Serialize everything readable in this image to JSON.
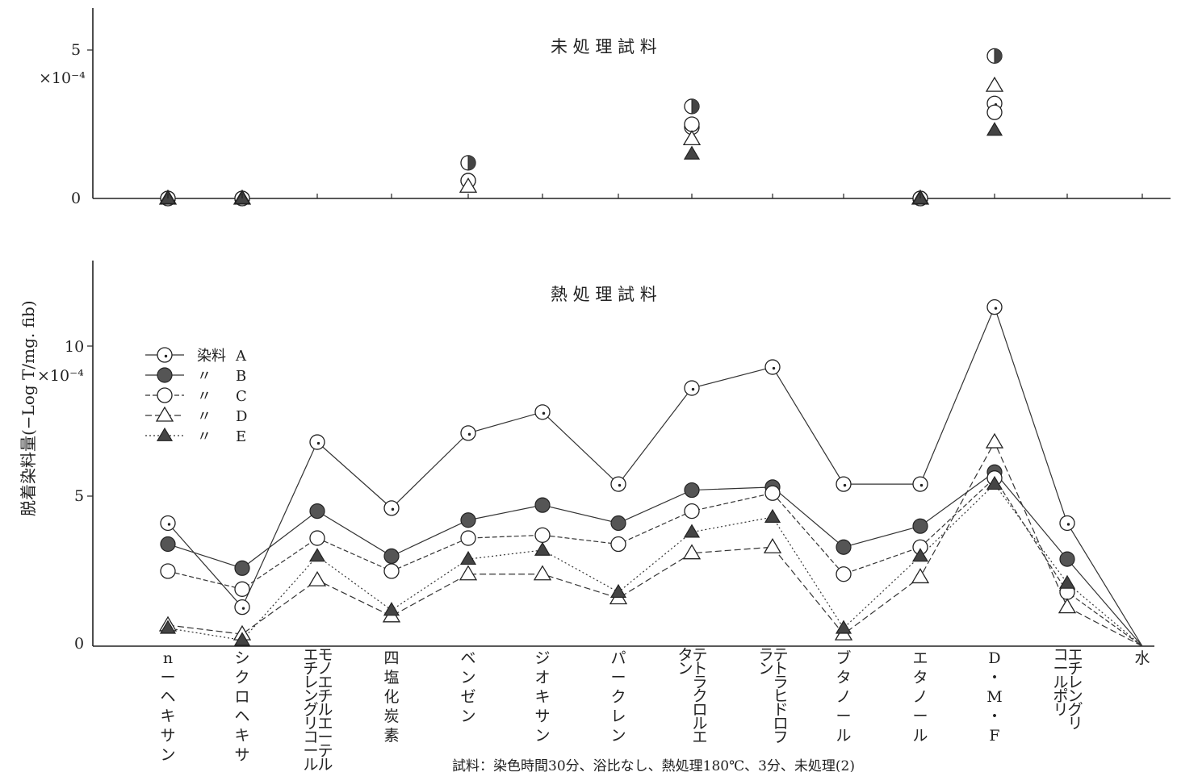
{
  "chart_data": [
    {
      "type": "scatter",
      "title": "未 処 理 試 料",
      "ylim": [
        0,
        5
      ],
      "yticks": [
        "0",
        "5"
      ],
      "y_multiplier": "×10⁻⁴",
      "categories": [
        "n-ヘキサン",
        "シクロヘキサン",
        "モノエチルエーテル エチレングリコール",
        "四塩化炭素",
        "ベンゼン",
        "ジオキサン",
        "パークレン",
        "テトラクロルエタン",
        "テトラヒドロフラン",
        "ブタノール",
        "エタノール",
        "D・M・F",
        "ポリエチレングリコール",
        "水"
      ],
      "series": [
        {
          "name": "A",
          "values": [
            0,
            0,
            null,
            null,
            0.6,
            null,
            null,
            2.4,
            null,
            null,
            0,
            3.2,
            null,
            null
          ]
        },
        {
          "name": "B",
          "values": [
            0,
            0,
            null,
            null,
            1.2,
            null,
            null,
            3.1,
            null,
            null,
            0,
            4.8,
            null,
            null
          ]
        },
        {
          "name": "C",
          "values": [
            0,
            0,
            null,
            null,
            0.6,
            null,
            null,
            2.5,
            null,
            null,
            0,
            2.9,
            null,
            null
          ]
        },
        {
          "name": "D",
          "values": [
            0,
            0,
            null,
            null,
            0.4,
            null,
            null,
            2.0,
            null,
            null,
            0,
            3.8,
            null,
            null
          ]
        },
        {
          "name": "E",
          "values": [
            0,
            0,
            null,
            null,
            null,
            null,
            null,
            1.5,
            null,
            null,
            0,
            2.3,
            null,
            null
          ]
        }
      ]
    },
    {
      "type": "line",
      "title": "熱 処 理 試 料",
      "ylim": [
        0,
        12
      ],
      "yticks": [
        "0",
        "5",
        "10"
      ],
      "y_multiplier": "×10⁻⁴",
      "categories": [
        "n-ヘキサン",
        "シクロヘキサン",
        "モノエチルエーテル エチレングリコール",
        "四塩化炭素",
        "ベンゼン",
        "ジオキサン",
        "パークレン",
        "テトラクロルエタン",
        "テトラヒドロフラン",
        "ブタノール",
        "エタノール",
        "D・M・F",
        "ポリエチレングリコール",
        "水"
      ],
      "series": [
        {
          "name": "A",
          "values": [
            4.1,
            1.3,
            6.8,
            4.6,
            7.1,
            7.8,
            5.4,
            8.6,
            9.3,
            5.4,
            5.4,
            11.3,
            4.1,
            0
          ]
        },
        {
          "name": "B",
          "values": [
            3.4,
            2.6,
            4.5,
            3.0,
            4.2,
            4.7,
            4.1,
            5.2,
            5.3,
            3.3,
            4.0,
            5.8,
            2.9,
            0
          ]
        },
        {
          "name": "C",
          "values": [
            2.5,
            1.9,
            3.6,
            2.5,
            3.6,
            3.7,
            3.4,
            4.5,
            5.1,
            2.4,
            3.3,
            5.6,
            1.8,
            0
          ]
        },
        {
          "name": "D",
          "values": [
            0.7,
            0.4,
            2.2,
            1.0,
            2.4,
            2.4,
            1.6,
            3.1,
            3.3,
            0.4,
            2.3,
            6.8,
            1.3,
            0
          ]
        },
        {
          "name": "E",
          "values": [
            0.6,
            0.2,
            3.0,
            1.2,
            2.9,
            3.2,
            1.8,
            3.8,
            4.3,
            0.6,
            3.0,
            5.4,
            2.1,
            0
          ]
        }
      ]
    }
  ],
  "y_axis_label": "脱着染料量(−Log T/mg. fib)",
  "legend": [
    {
      "prefix": "染料",
      "name": "A"
    },
    {
      "prefix": "〃",
      "name": "B"
    },
    {
      "prefix": "〃",
      "name": "C"
    },
    {
      "prefix": "〃",
      "name": "D"
    },
    {
      "prefix": "〃",
      "name": "E"
    }
  ],
  "x_labels": [
    {
      "lines": [
        "n",
        "ー",
        "ヘ",
        "キ",
        "サ",
        "ン"
      ]
    },
    {
      "lines": [
        "シ",
        "ク",
        "ロ",
        "ヘ",
        "キ",
        "サ"
      ]
    },
    {
      "lines": [
        "モノエチルエーテル",
        "エチレングリコール"
      ]
    },
    {
      "lines": [
        "四",
        "塩",
        "化",
        "炭",
        "素"
      ]
    },
    {
      "lines": [
        "ベ",
        "ン",
        "ゼ",
        "ン"
      ]
    },
    {
      "lines": [
        "ジ",
        "オ",
        "キ",
        "サ",
        "ン"
      ]
    },
    {
      "lines": [
        "パ",
        "ー",
        "ク",
        "レ",
        "ン"
      ]
    },
    {
      "lines": [
        "テトラクロルエ",
        "タン"
      ]
    },
    {
      "lines": [
        "テトラヒドロフ",
        "ラン"
      ]
    },
    {
      "lines": [
        "ブ",
        "タ",
        "ノ",
        "ー",
        "ル"
      ]
    },
    {
      "lines": [
        "エ",
        "タ",
        "ノ",
        "ー",
        "ル"
      ]
    },
    {
      "lines": [
        "D",
        "・",
        "M",
        "・",
        "F"
      ]
    },
    {
      "lines": [
        "エチレングリ",
        "コールポリ"
      ]
    },
    {
      "lines": [
        "水"
      ]
    }
  ],
  "footnote": "試料：染色時間30分、浴比なし、熱処理180℃、3分、未処理(2)"
}
